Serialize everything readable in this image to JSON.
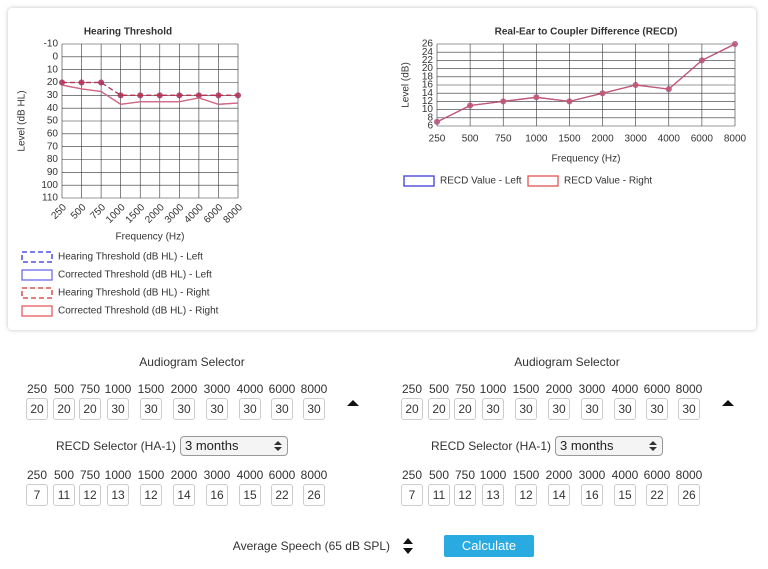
{
  "chart_data": [
    {
      "type": "line",
      "title": "Hearing Threshold",
      "x_label": "Frequency (Hz)",
      "y_label": "Level (dB HL)",
      "categories": [
        "250",
        "500",
        "750",
        "1000",
        "1500",
        "2000",
        "3000",
        "4000",
        "6000",
        "8000"
      ],
      "ylim": [
        -10,
        110
      ],
      "y_reversed": true,
      "yticks": [
        -10,
        0,
        10,
        20,
        30,
        40,
        50,
        60,
        70,
        80,
        90,
        100,
        110
      ],
      "grid": true,
      "legend": "bottom",
      "series": [
        {
          "name": "Hearing Threshold (dB HL) - Left",
          "color": "#2f2fd6",
          "dashed": true,
          "markers": true,
          "values": [
            20,
            20,
            20,
            30,
            30,
            30,
            30,
            30,
            30,
            30
          ]
        },
        {
          "name": "Corrected Threshold (dB HL) - Left",
          "color": "#6b6bf0",
          "dashed": false,
          "markers": false,
          "values": [
            22,
            25,
            27,
            37,
            35,
            35,
            35,
            32,
            37,
            36
          ]
        },
        {
          "name": "Hearing Threshold (dB HL) - Right",
          "color": "#d62f2f",
          "dashed": true,
          "markers": true,
          "values": [
            20,
            20,
            20,
            30,
            30,
            30,
            30,
            30,
            30,
            30
          ]
        },
        {
          "name": "Corrected Threshold (dB HL) - Right",
          "color": "#e85a5a",
          "dashed": false,
          "markers": false,
          "values": [
            22,
            25,
            27,
            37,
            35,
            35,
            35,
            32,
            37,
            36
          ]
        }
      ]
    },
    {
      "type": "line",
      "title": "Real-Ear to Coupler Difference (RECD)",
      "x_label": "Frequency (Hz)",
      "y_label": "Level (dB)",
      "categories": [
        "250",
        "500",
        "750",
        "1000",
        "1500",
        "2000",
        "3000",
        "4000",
        "6000",
        "8000"
      ],
      "ylim": [
        6,
        26
      ],
      "y_reversed": false,
      "yticks": [
        6,
        8,
        10,
        12,
        14,
        16,
        18,
        20,
        22,
        24,
        26
      ],
      "grid": true,
      "legend": "bottom",
      "series": [
        {
          "name": "RECD Value - Left",
          "color": "#3c3cd8",
          "dashed": false,
          "markers": true,
          "values": [
            7,
            11,
            12,
            13,
            12,
            14,
            16,
            15,
            22,
            26
          ]
        },
        {
          "name": "RECD Value - Right",
          "color": "#e05555",
          "dashed": false,
          "markers": true,
          "values": [
            7,
            11,
            12,
            13,
            12,
            14,
            16,
            15,
            22,
            26
          ]
        }
      ]
    }
  ],
  "form": {
    "panels": [
      {
        "audiogram_title": "Audiogram Selector",
        "recd_label": "RECD Selector (HA-1)",
        "recd_option": "3 months"
      },
      {
        "audiogram_title": "Audiogram Selector",
        "recd_label": "RECD Selector (HA-1)",
        "recd_option": "3 months"
      }
    ],
    "speech_label": "Average Speech (65 dB SPL)",
    "button": "Calculate"
  }
}
